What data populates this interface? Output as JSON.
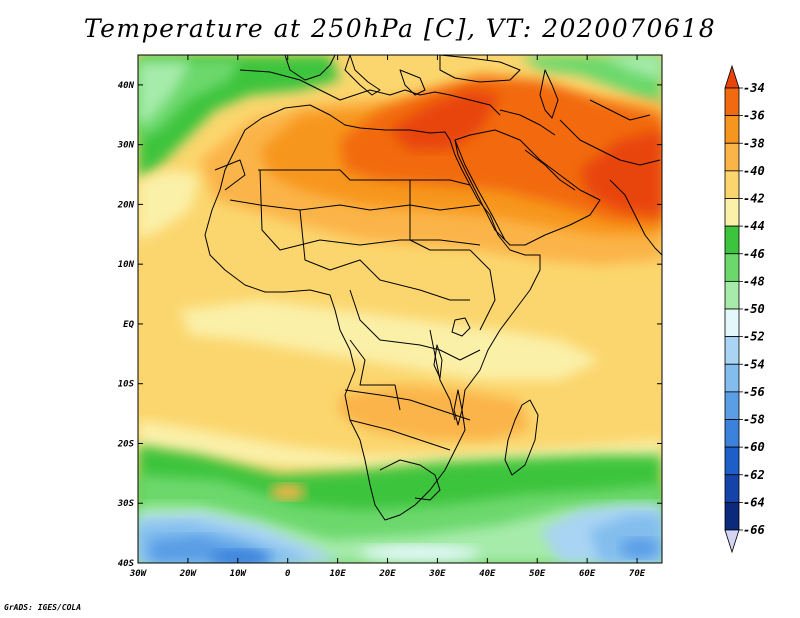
{
  "title": "Temperature at 250hPa [C], VT: 2020070618",
  "credit": "GrADS: IGES/COLA",
  "map": {
    "lon_range": [
      -30,
      75
    ],
    "lat_range": [
      -40,
      45
    ],
    "lat_labels": [
      "40N",
      "30N",
      "20N",
      "10N",
      "EQ",
      "10S",
      "20S",
      "30S",
      "40S"
    ],
    "lat_values": [
      40,
      30,
      20,
      10,
      0,
      -10,
      -20,
      -30,
      -40
    ],
    "lon_labels": [
      "30W",
      "20W",
      "10W",
      "0",
      "10E",
      "20E",
      "30E",
      "40E",
      "50E",
      "60E",
      "70E"
    ],
    "lon_values": [
      -30,
      -20,
      -10,
      0,
      10,
      20,
      30,
      40,
      50,
      60,
      70
    ]
  },
  "colorbar": {
    "labels": [
      "-34",
      "-36",
      "-38",
      "-40",
      "-42",
      "-44",
      "-46",
      "-48",
      "-50",
      "-52",
      "-54",
      "-56",
      "-58",
      "-60",
      "-62",
      "-64",
      "-66"
    ],
    "colors": [
      "#e8440c",
      "#f26a10",
      "#f7961e",
      "#fbb448",
      "#fbd66e",
      "#fbf0a8",
      "#3cc43c",
      "#6cd86c",
      "#a6ebaa",
      "#e4f8fc",
      "#a9d4f3",
      "#82bdee",
      "#5a9ee6",
      "#3a82dc",
      "#1e5ec8",
      "#1444aa",
      "#0c2a7c",
      "#d4d4f4"
    ]
  }
}
